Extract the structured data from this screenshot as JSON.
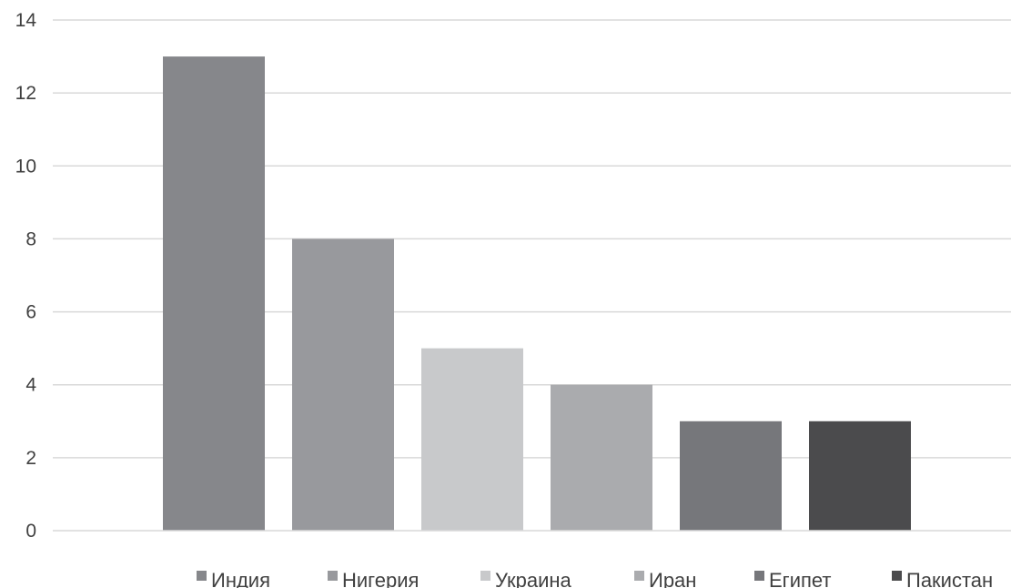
{
  "chart_data": {
    "type": "bar",
    "categories": [
      "Индия",
      "Нигерия",
      "Украина",
      "Иран",
      "Египет",
      "Пакистан"
    ],
    "series": [
      {
        "name": "Индия",
        "value": 13,
        "color": "#86878b"
      },
      {
        "name": "Нигерия",
        "value": 8,
        "color": "#98999d"
      },
      {
        "name": "Украина",
        "value": 5,
        "color": "#c8c9cb"
      },
      {
        "name": "Иран",
        "value": 4,
        "color": "#aaabae"
      },
      {
        "name": "Египет",
        "value": 3,
        "color": "#76777b"
      },
      {
        "name": "Пакистан",
        "value": 3,
        "color": "#4b4b4d"
      }
    ],
    "ylim": [
      0,
      14
    ],
    "yticks": [
      "0",
      "2",
      "4",
      "6",
      "8",
      "10",
      "12",
      "14"
    ],
    "grid": true,
    "legend_position": "bottom"
  }
}
